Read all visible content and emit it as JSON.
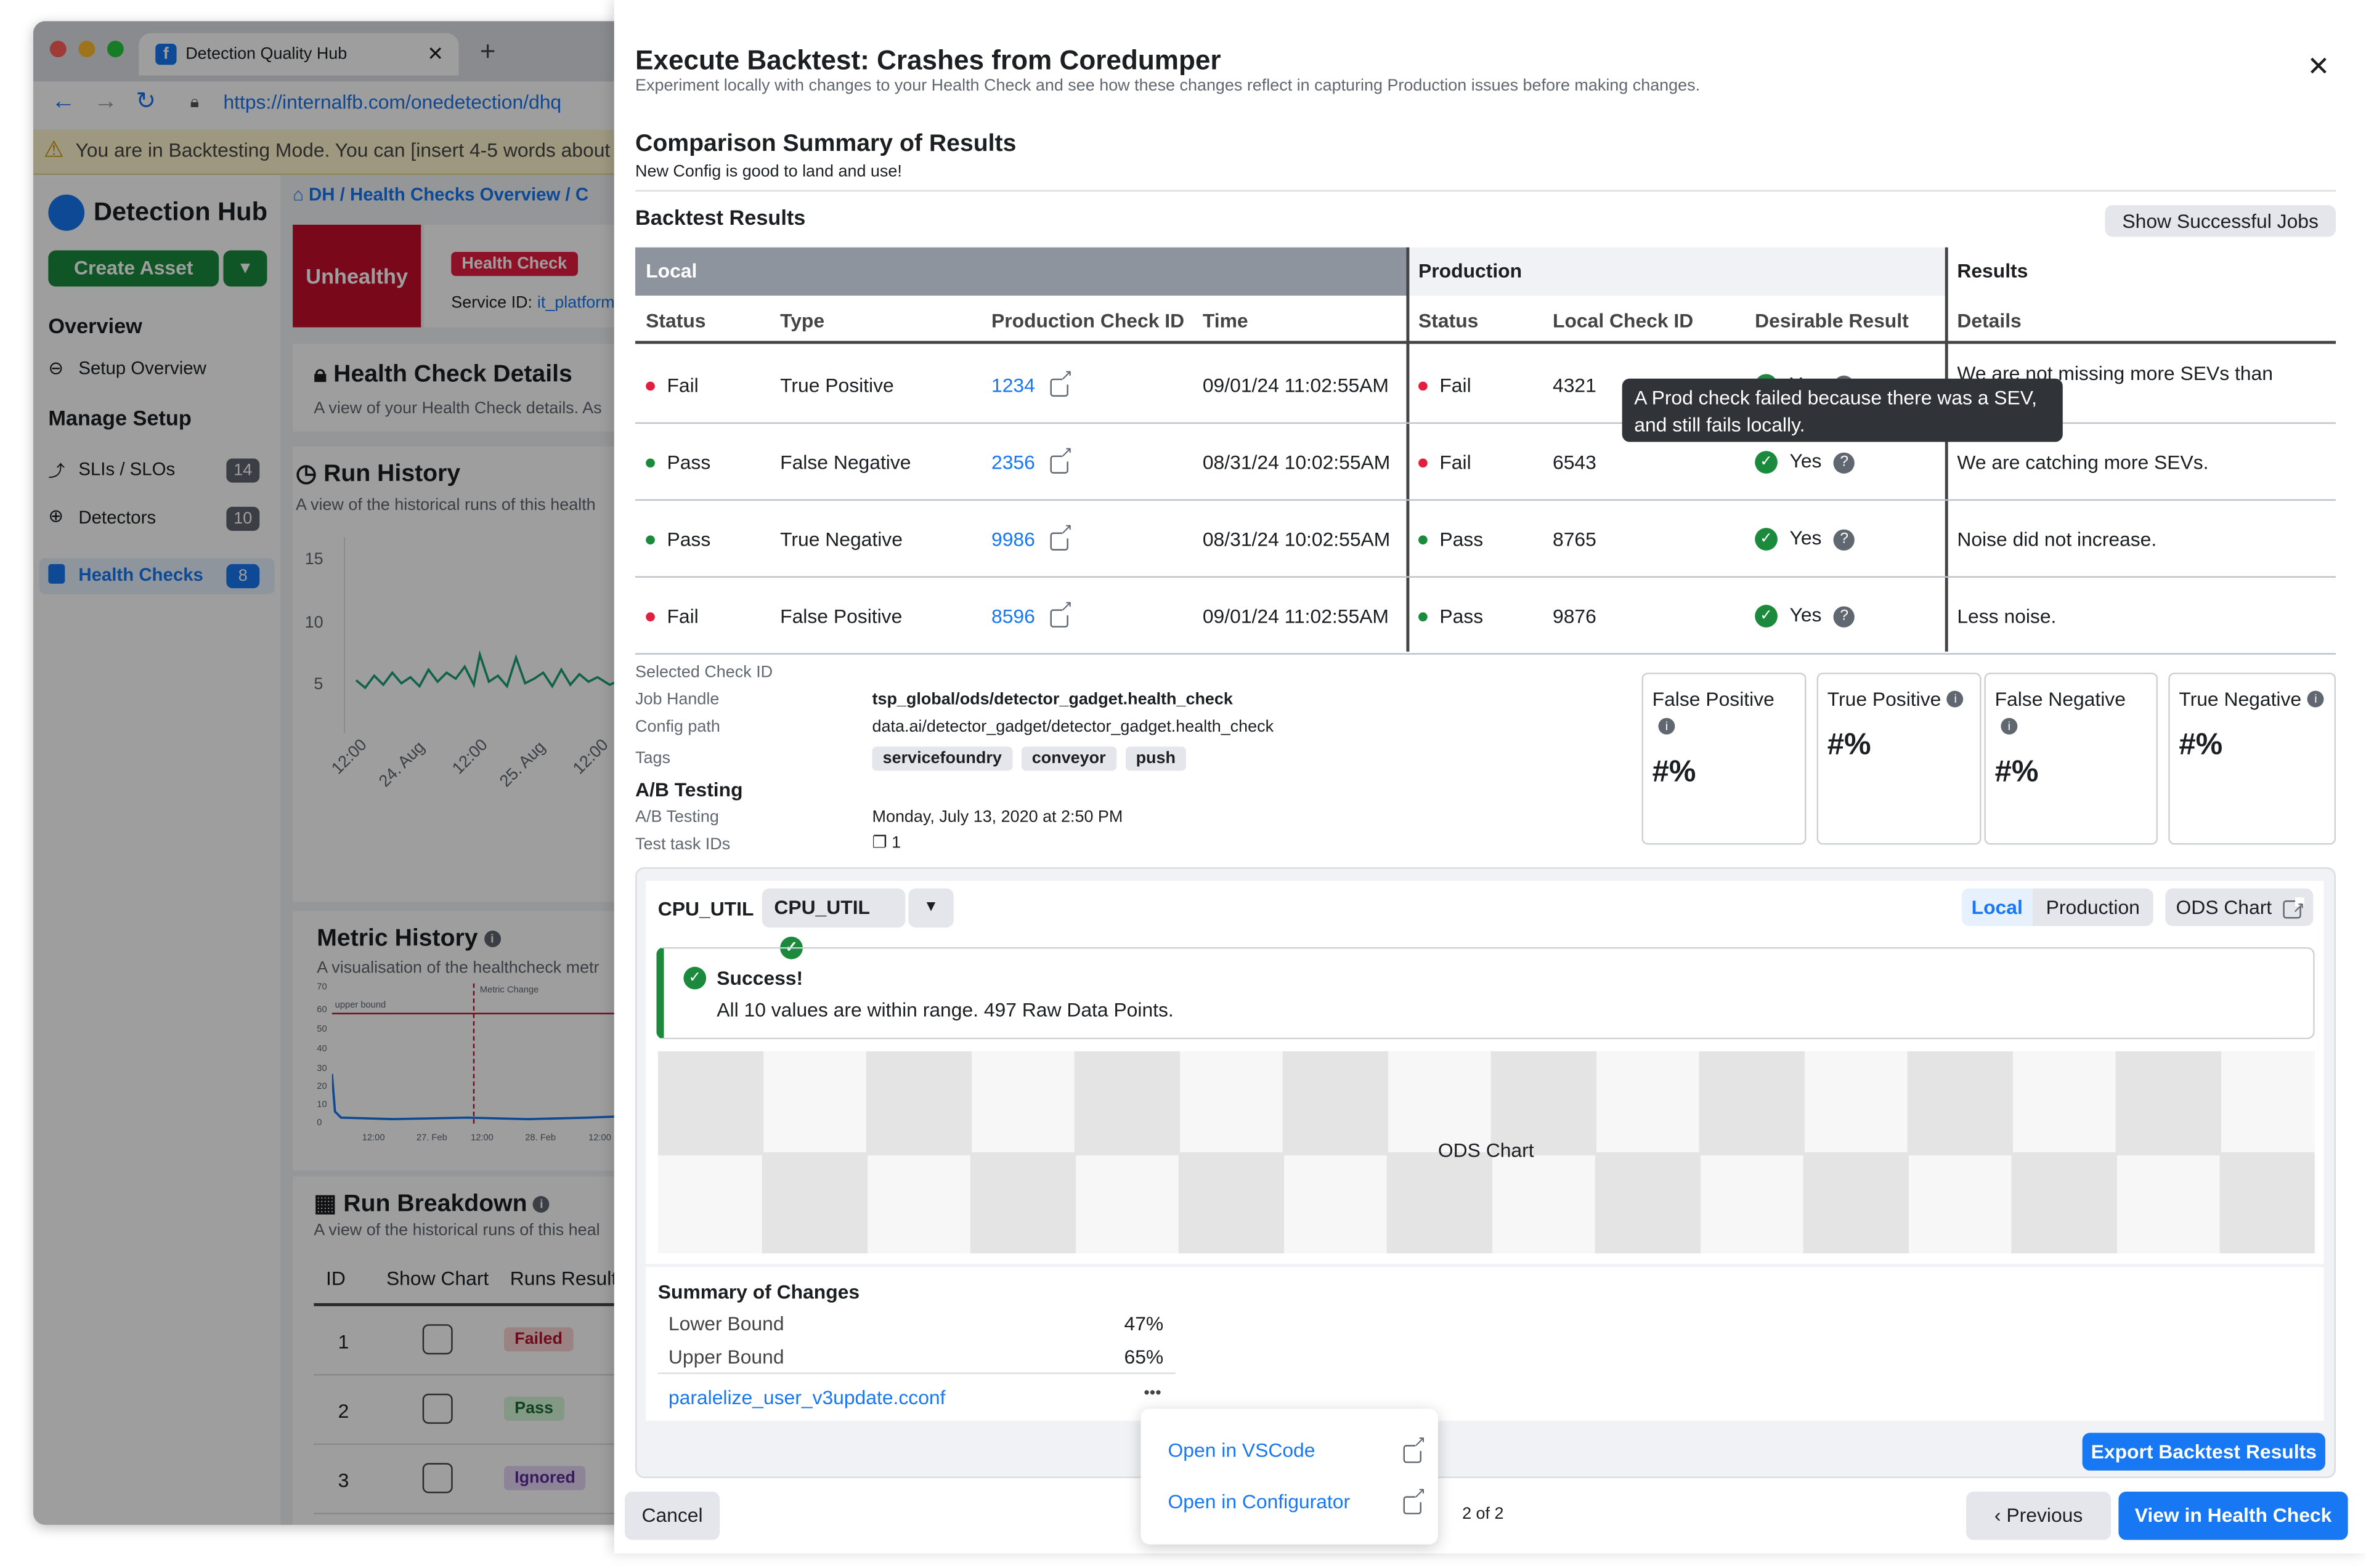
{
  "browser": {
    "tab_title": "Detection Quality Hub",
    "url": "https://internalfb.com/onedetection/dhq",
    "warning": "You are in Backtesting Mode. You can [insert 4-5 words about"
  },
  "sidebar": {
    "app_name": "Detection Hub",
    "create_label": "Create Asset",
    "overview": "Overview",
    "setup_overview": "Setup Overview",
    "manage_setup": "Manage Setup",
    "items": [
      {
        "label": "SLIs / SLOs",
        "count": "14"
      },
      {
        "label": "Detectors",
        "count": "10"
      },
      {
        "label": "Health Checks",
        "count": "8"
      }
    ]
  },
  "bg": {
    "breadcrumb": "DH / Health Checks Overview / C",
    "status": "Unhealthy",
    "hc_badge": "Health Check",
    "service_label": "Service ID:",
    "service_id": "it_platform",
    "details_title": "Health Check Details",
    "details_sub": "A view of your Health Check details. As",
    "run_history_title": "Run History",
    "run_history_sub": "A view of the historical runs of this health",
    "y_ticks": [
      "15",
      "10",
      "5"
    ],
    "x_ticks": [
      "12:00",
      "24. Aug",
      "12:00",
      "25. Aug",
      "12:00"
    ],
    "metric_title": "Metric History",
    "metric_sub": "A visualisation of the healthcheck metr",
    "metric_y": [
      "70",
      "60",
      "50",
      "40",
      "30",
      "20",
      "10",
      "0"
    ],
    "metric_x": [
      "12:00",
      "27. Feb",
      "12:00",
      "28. Feb",
      "12:00"
    ],
    "upper_bound": "upper bound",
    "metric_change": "Metric Change",
    "breakdown_title": "Run Breakdown",
    "breakdown_sub": "A view of the historical runs of this heal",
    "cols": [
      "ID",
      "Show Chart",
      "Runs Result"
    ],
    "rows": [
      {
        "id": "1",
        "result": "Failed"
      },
      {
        "id": "2",
        "result": "Pass"
      },
      {
        "id": "3",
        "result": "Ignored"
      }
    ]
  },
  "modal": {
    "title": "Execute Backtest: Crashes from Coredumper",
    "subtitle": "Experiment locally with changes to your Health Check and see how these changes reflect in capturing Production issues before making changes.",
    "summary_title": "Comparison Summary of Results",
    "summary_sub": "New Config is good to land and use!",
    "backtest_title": "Backtest Results",
    "show_jobs": "Show Successful Jobs",
    "groups": [
      "Local",
      "Production",
      "Results"
    ],
    "columns": [
      "Status",
      "Type",
      "Production Check ID",
      "Time",
      "Status",
      "Local Check ID",
      "Desirable Result",
      "Details"
    ],
    "rows": [
      {
        "status": "Fail",
        "type": "True Positive",
        "prod_id": "1234",
        "time": "09/01/24 11:02:55AM",
        "p_status": "Fail",
        "local_id": "4321",
        "desirable": "Yes",
        "details": "We are not missing more SEVs than"
      },
      {
        "status": "Pass",
        "type": "False Negative",
        "prod_id": "2356",
        "time": "08/31/24 10:02:55AM",
        "p_status": "Fail",
        "local_id": "6543",
        "desirable": "Yes",
        "details": "We are catching more SEVs."
      },
      {
        "status": "Pass",
        "type": "True Negative",
        "prod_id": "9986",
        "time": "08/31/24 10:02:55AM",
        "p_status": "Pass",
        "local_id": "8765",
        "desirable": "Yes",
        "details": "Noise did not increase."
      },
      {
        "status": "Fail",
        "type": "False Positive",
        "prod_id": "8596",
        "time": "09/01/24 11:02:55AM",
        "p_status": "Pass",
        "local_id": "9876",
        "desirable": "Yes",
        "details": "Less noise."
      }
    ],
    "tooltip": "A Prod check failed because there was a SEV, and still fails locally.",
    "meta": {
      "selected": "Selected Check ID",
      "job_handle_lbl": "Job Handle",
      "job_handle": "tsp_global/ods/detector_gadget.health_check",
      "config_lbl": "Config path",
      "config": "data.ai/detector_gadget/detector_gadget.health_check",
      "tags_lbl": "Tags",
      "tags": [
        "servicefoundry",
        "conveyor",
        "push"
      ],
      "ab_title": "A/B Testing",
      "ab_lbl": "A/B Testing",
      "ab_val": "Monday, July 13, 2020 at 2:50 PM",
      "task_lbl": "Test task IDs",
      "task_val": "1"
    },
    "stats": [
      {
        "label": "False Positive",
        "value": "#%"
      },
      {
        "label": "True Positive",
        "value": "#%"
      },
      {
        "label": "False Negative",
        "value": "#%"
      },
      {
        "label": "True Negative",
        "value": "#%"
      }
    ],
    "metric": {
      "name": "CPU_UTIL",
      "select": "CPU_UTIL",
      "seg": [
        "Local",
        "Production"
      ],
      "ods": "ODS Chart",
      "success_title": "Success!",
      "success_msg": "All 10 values are within range. 497 Raw Data Points.",
      "chart_label": "ODS Chart"
    },
    "changes": {
      "title": "Summary of Changes",
      "rows": [
        {
          "k": "Lower Bound",
          "v": "47%"
        },
        {
          "k": "Upper Bound",
          "v": "65%"
        }
      ],
      "file": "paralelize_user_v3update.cconf",
      "more": "•••"
    },
    "menu": [
      "Open in VSCode",
      "Open in Configurator"
    ],
    "export": "Export Backtest Results",
    "footer": {
      "cancel": "Cancel",
      "page": "2 of 2",
      "prev": "Previous",
      "view": "View in Health Check"
    },
    "close": "✕"
  }
}
